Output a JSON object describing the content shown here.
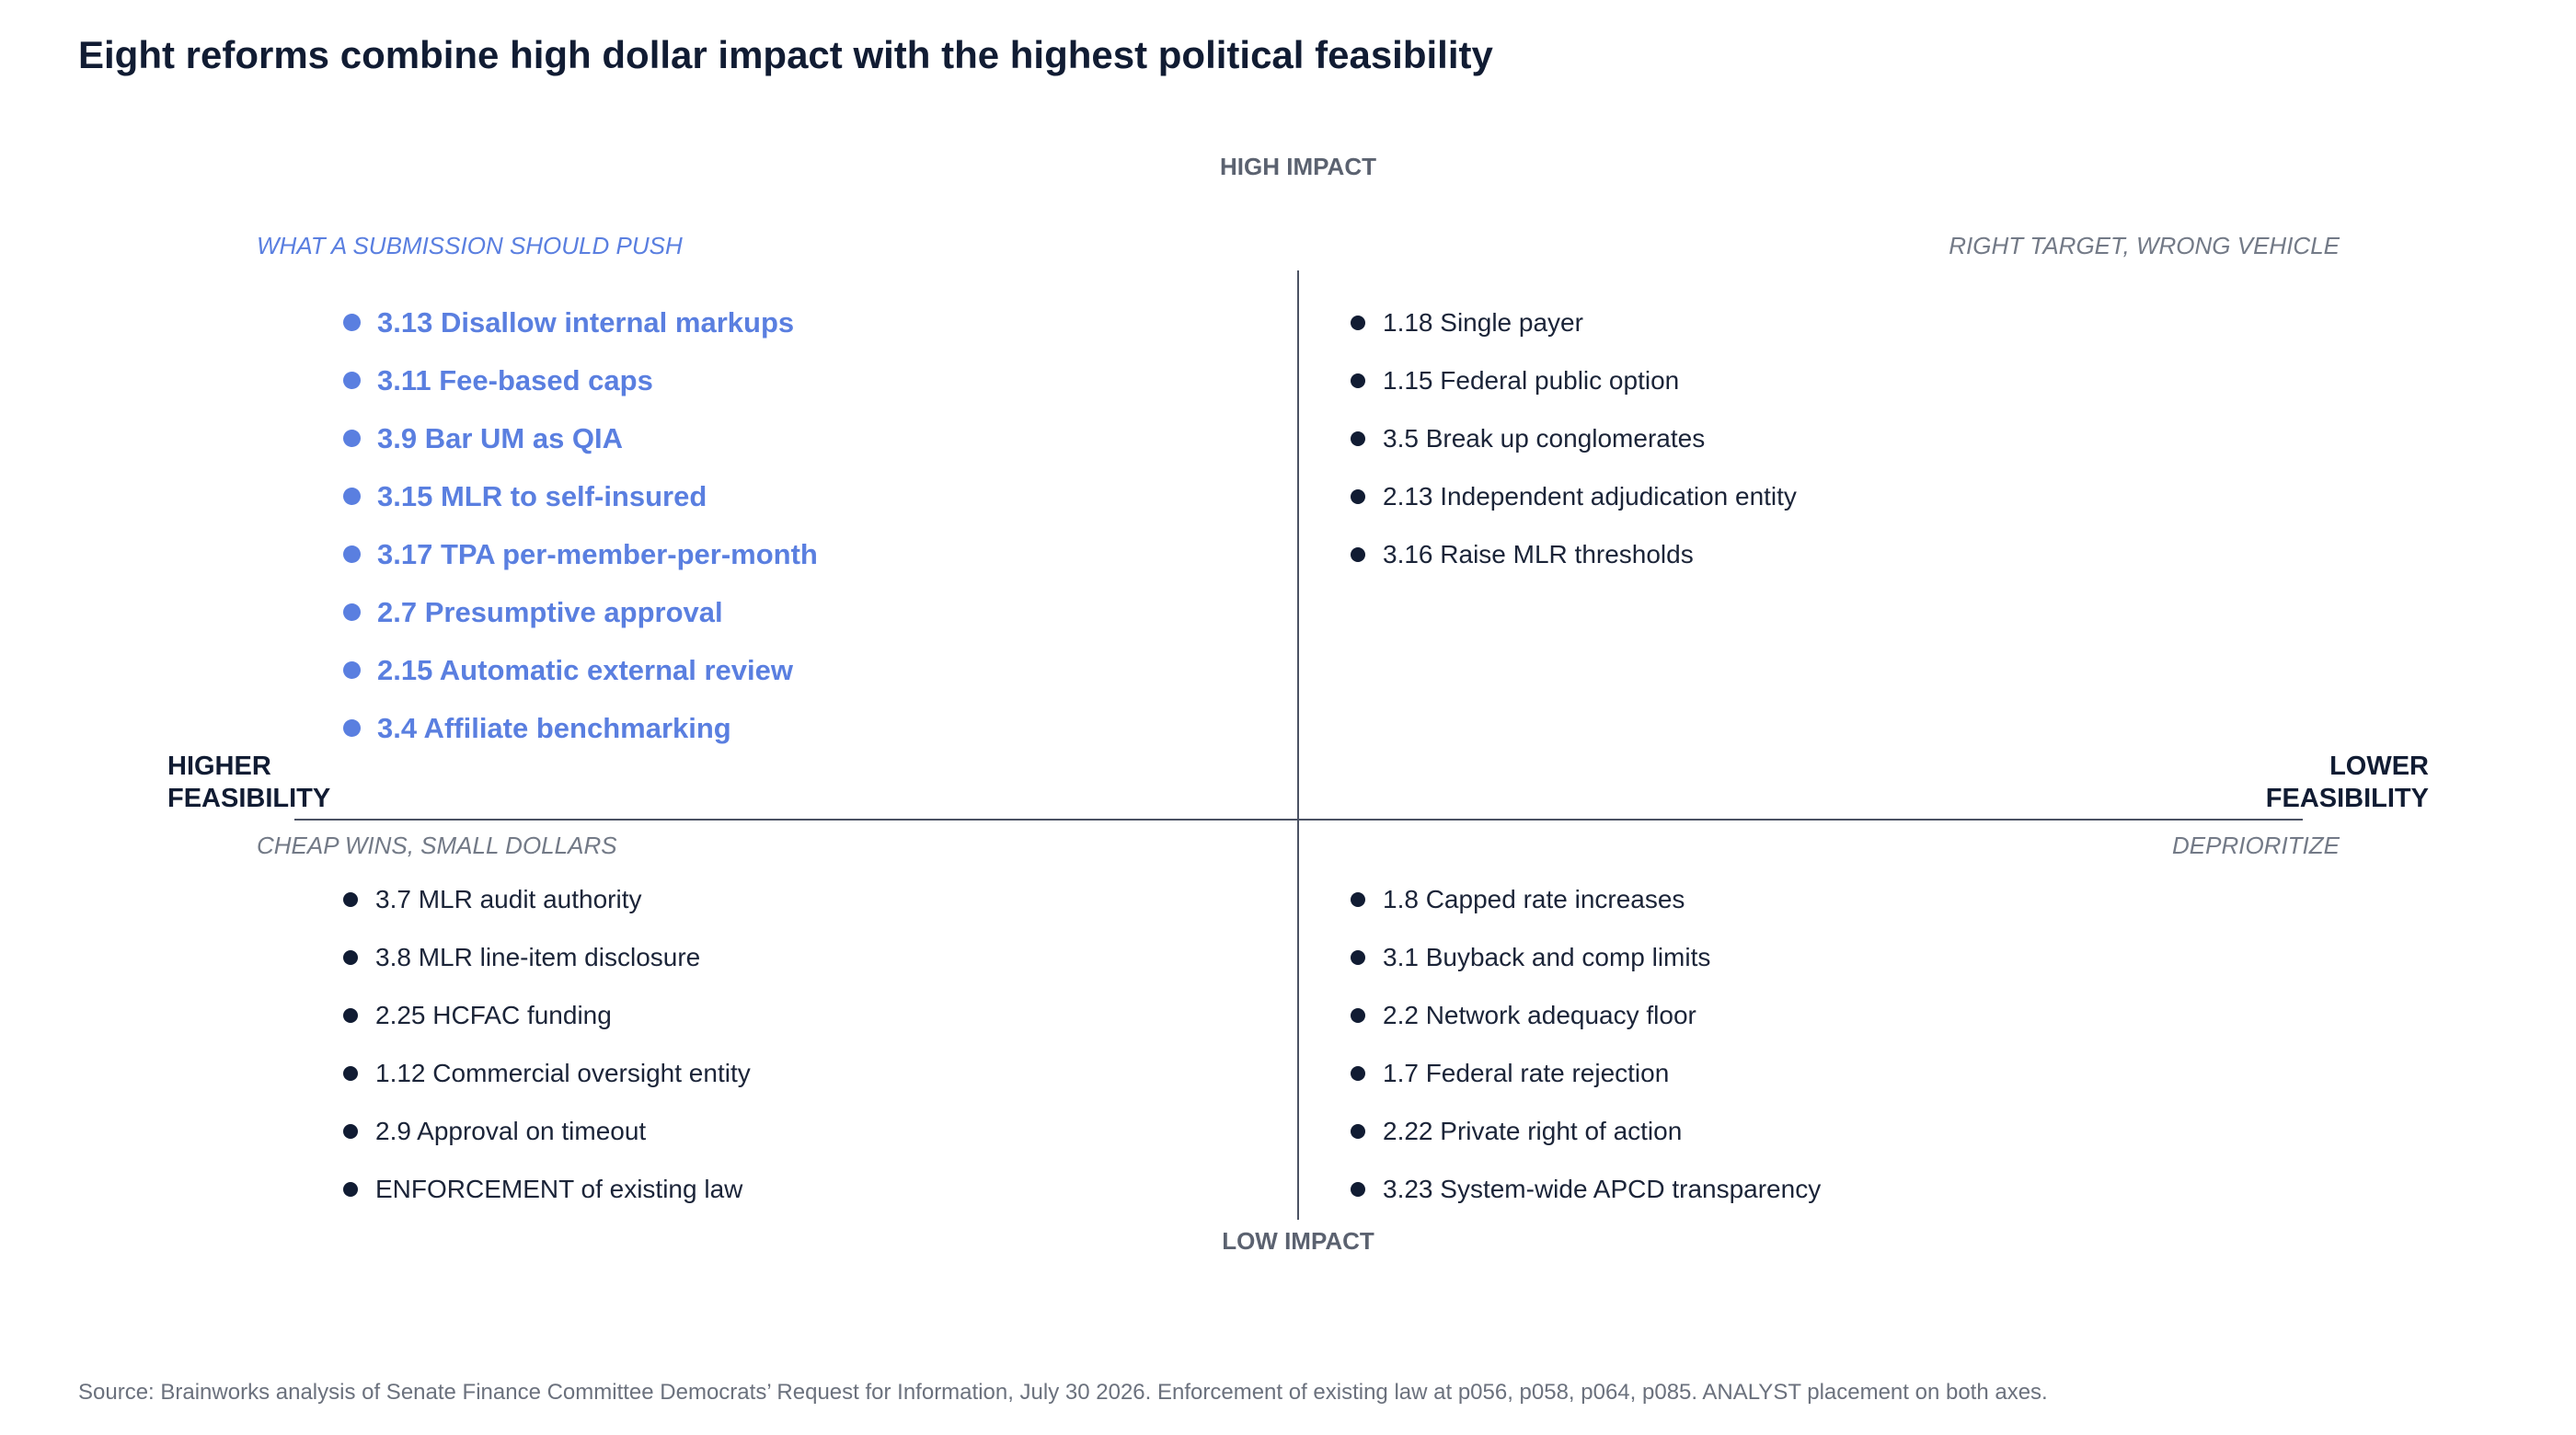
{
  "title": "Eight reforms combine high dollar impact with the highest political feasibility",
  "axes": {
    "high_impact": "HIGH IMPACT",
    "low_impact": "LOW IMPACT",
    "higher_feasibility": [
      "HIGHER",
      "FEASIBILITY"
    ],
    "lower_feasibility": [
      "LOWER",
      "FEASIBILITY"
    ]
  },
  "quadrants": {
    "top_left": {
      "label": "WHAT A SUBMISSION SHOULD PUSH",
      "items": [
        "3.13 Disallow internal markups",
        "3.11 Fee-based caps",
        "3.9  Bar UM as QIA",
        "3.15 MLR to self-insured",
        "3.17 TPA per-member-per-month",
        "2.7  Presumptive approval",
        "2.15 Automatic external review",
        "3.4  Affiliate benchmarking"
      ]
    },
    "top_right": {
      "label": "RIGHT TARGET, WRONG VEHICLE",
      "items": [
        "1.18 Single payer",
        "1.15 Federal public option",
        "3.5  Break up conglomerates",
        "2.13 Independent adjudication entity",
        "3.16 Raise MLR thresholds"
      ]
    },
    "bottom_left": {
      "label": "CHEAP WINS, SMALL DOLLARS",
      "items": [
        "3.7  MLR audit authority",
        "3.8  MLR line-item disclosure",
        "2.25 HCFAC funding",
        "1.12 Commercial oversight entity",
        "2.9  Approval on timeout",
        "ENFORCEMENT of existing law"
      ]
    },
    "bottom_right": {
      "label": "DEPRIORITIZE",
      "items": [
        "1.8  Capped rate increases",
        "3.1  Buyback and comp limits",
        "2.2  Network adequacy floor",
        "1.7  Federal rate rejection",
        "2.22 Private right of action",
        "3.23 System-wide APCD transparency"
      ]
    }
  },
  "source": "Source: Brainworks analysis of Senate Finance Committee Democrats’ Request for Information, July 30 2026. Enforcement of existing law at p056, p058, p064, p085. ANALYST placement on both axes.",
  "colors": {
    "accent": "#5a7fe0",
    "text_dark": "#111c33",
    "muted": "#737a87",
    "axis_line": "#4b5263"
  }
}
